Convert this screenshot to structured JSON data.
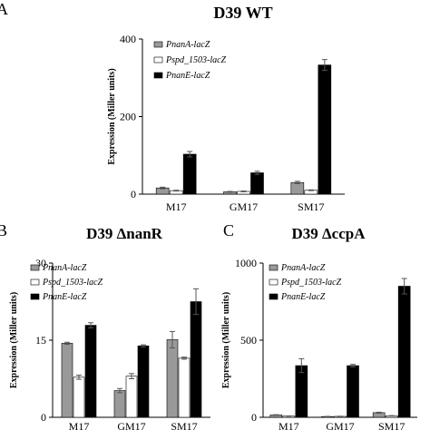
{
  "panel_letters": [
    "A",
    "B",
    "C"
  ],
  "legend": [
    "PnanA-lacZ",
    "Pspd_1503-lacZ",
    "PnanE-lacZ"
  ],
  "colors": {
    "PnanA-lacZ": "#999999",
    "Pspd_1503-lacZ": "#ffffff",
    "PnanE-lacZ": "#000000"
  },
  "chart_data": [
    {
      "type": "bar",
      "panel": "A",
      "title": "D39 WT",
      "ylabel": "Expression (Miller units)",
      "categories": [
        "M17",
        "GM17",
        "SM17"
      ],
      "ylim": [
        0,
        400
      ],
      "yticks": [
        0,
        200,
        400
      ],
      "legend_position": "top-left",
      "series": [
        {
          "name": "PnanA-lacZ",
          "values": [
            16,
            6,
            30
          ],
          "errors": [
            2,
            1,
            3
          ]
        },
        {
          "name": "Pspd_1503-lacZ",
          "values": [
            9,
            7,
            10
          ],
          "errors": [
            1,
            1,
            1
          ]
        },
        {
          "name": "PnanE-lacZ",
          "values": [
            103,
            55,
            333
          ],
          "errors": [
            7,
            4,
            14
          ]
        }
      ]
    },
    {
      "type": "bar",
      "panel": "B",
      "title": "D39 ΔnanR",
      "ylabel": "Expression (Miller units)",
      "categories": [
        "M17",
        "GM17",
        "SM17"
      ],
      "ylim": [
        0,
        30
      ],
      "yticks": [
        0,
        15,
        30
      ],
      "legend_position": "top-left",
      "series": [
        {
          "name": "PnanA-lacZ",
          "values": [
            14.4,
            5.2,
            15.1
          ],
          "errors": [
            0.2,
            0.4,
            1.6
          ]
        },
        {
          "name": "Pspd_1503-lacZ",
          "values": [
            7.8,
            8.0,
            11.5
          ],
          "errors": [
            0.4,
            0.5,
            0.2
          ]
        },
        {
          "name": "PnanE-lacZ",
          "values": [
            17.9,
            13.9,
            22.5
          ],
          "errors": [
            0.5,
            0.2,
            2.5
          ]
        }
      ]
    },
    {
      "type": "bar",
      "panel": "C",
      "title": "D39 ΔccpA",
      "ylabel": "Expression (Miller units)",
      "categories": [
        "M17",
        "GM17",
        "SM17"
      ],
      "ylim": [
        0,
        1000
      ],
      "yticks": [
        0,
        500,
        1000
      ],
      "legend_position": "top-left",
      "series": [
        {
          "name": "PnanA-lacZ",
          "values": [
            15,
            5,
            30
          ],
          "errors": [
            2,
            1,
            3
          ]
        },
        {
          "name": "Pspd_1503-lacZ",
          "values": [
            8,
            6,
            10
          ],
          "errors": [
            1,
            1,
            1
          ]
        },
        {
          "name": "PnanE-lacZ",
          "values": [
            335,
            335,
            850
          ],
          "errors": [
            45,
            8,
            50
          ]
        }
      ]
    }
  ]
}
